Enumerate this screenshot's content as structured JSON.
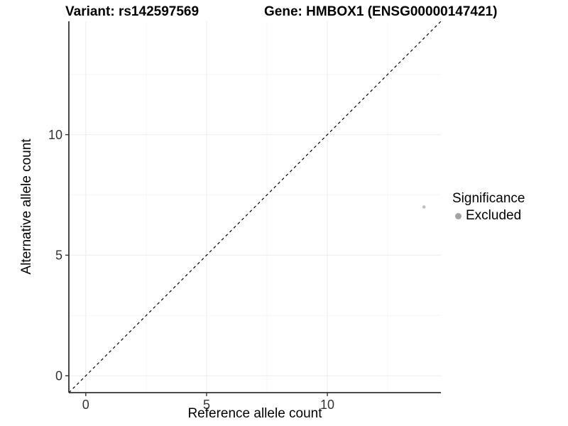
{
  "chart_data": {
    "type": "scatter",
    "title_left": "Variant: rs142597569",
    "title_right": "Gene: HMBOX1 (ENSG00000147421)",
    "xlabel": "Reference allele count",
    "ylabel": "Alternative allele count",
    "xlim": [
      -0.7,
      14.7
    ],
    "ylim": [
      -0.7,
      14.7
    ],
    "x_ticks": [
      0,
      5,
      10
    ],
    "y_ticks": [
      0,
      5,
      10
    ],
    "x_minor_ticks": [
      2.5,
      7.5,
      12.5
    ],
    "y_minor_ticks": [
      2.5,
      7.5,
      12.5
    ],
    "grid": "major+minor",
    "series": [
      {
        "name": "Excluded",
        "points": [
          {
            "x": 14,
            "y": 7
          }
        ],
        "color": "#bebebe",
        "marker_radius": 2.3
      }
    ],
    "reference_line": {
      "type": "identity",
      "slope": 1,
      "intercept": 0,
      "style": "dashed",
      "color": "#000000"
    },
    "legend": {
      "title": "Significance",
      "position": "right",
      "items": [
        {
          "label": "Excluded",
          "swatch_color": "#a3a3a3"
        }
      ]
    },
    "colors": {
      "panel_bg": "#ffffff",
      "grid_major": "#ebebeb",
      "grid_minor": "#f6f6f6",
      "axis_line": "#333333",
      "tick_mark": "#333333",
      "tick_text": "#333333"
    }
  }
}
